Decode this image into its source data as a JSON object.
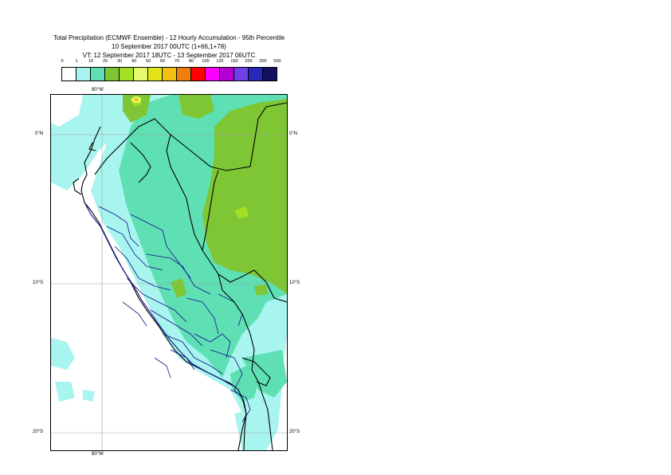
{
  "header": {
    "title_line1": "Total Precipitation (ECMWF Ensemble) - 12 Hourly Accumulation - 95th Percentile",
    "title_line2": "10 September 2017 00UTC (1+66,1+78)",
    "title_line3": "VT: 12 September 2017 18UTC - 13 September 2017 06UTC"
  },
  "legend": {
    "labels": [
      "0",
      "1",
      "10",
      "20",
      "30",
      "40",
      "50",
      "60",
      "70",
      "80",
      "100",
      "125",
      "150",
      "200",
      "300",
      "500"
    ],
    "colors": [
      "#ffffff",
      "#a8f4ee",
      "#5ee0b4",
      "#7fc635",
      "#a3e024",
      "#e7f86c",
      "#e2e619",
      "#f2c010",
      "#f07e0c",
      "#ff0000",
      "#ff00ff",
      "#b400d2",
      "#7040e8",
      "#2828b8",
      "#121060"
    ]
  },
  "map": {
    "lat_labels_left": [
      "0°N",
      "10°S",
      "20°S"
    ],
    "lat_labels_right": [
      "0°N",
      "10°S",
      "20°S"
    ],
    "lon_label_top": "80°W",
    "lon_label_bottom": "80°W",
    "colors": {
      "coast": "#000000",
      "admin_border": "#10108c",
      "gridline": "#a0a0a0"
    }
  }
}
